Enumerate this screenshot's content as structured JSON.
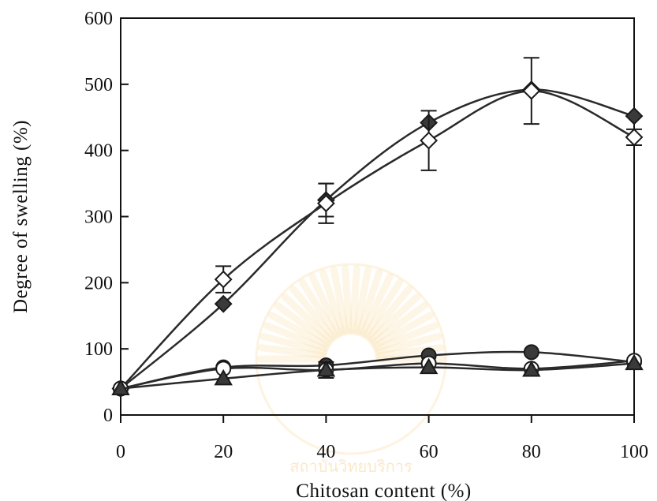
{
  "chart_data": {
    "type": "line",
    "title": "",
    "xlabel": "Chitosan content (%)",
    "ylabel": "Degree of swelling (%)",
    "xlim": [
      0,
      100
    ],
    "ylim": [
      0,
      600
    ],
    "xticks": [
      0,
      20,
      40,
      60,
      80,
      100
    ],
    "yticks": [
      0,
      100,
      200,
      300,
      400,
      500,
      600
    ],
    "x": [
      0,
      20,
      40,
      60,
      80,
      100
    ],
    "grid": false,
    "legend": "none",
    "series": [
      {
        "marker": "diamond-filled",
        "values": [
          40,
          168,
          325,
          442,
          492,
          452
        ],
        "errors": [
          0,
          0,
          25,
          0,
          0,
          0
        ]
      },
      {
        "marker": "diamond-open",
        "values": [
          40,
          205,
          320,
          415,
          490,
          420
        ],
        "errors": [
          0,
          20,
          30,
          45,
          50,
          12
        ]
      },
      {
        "marker": "circle-filled",
        "values": [
          40,
          72,
          75,
          90,
          95,
          80
        ],
        "errors": [
          0,
          0,
          0,
          0,
          0,
          0
        ]
      },
      {
        "marker": "circle-open",
        "values": [
          40,
          70,
          68,
          78,
          70,
          82
        ],
        "errors": [
          0,
          0,
          12,
          0,
          0,
          0
        ]
      },
      {
        "marker": "triangle-filled",
        "values": [
          40,
          55,
          68,
          72,
          68,
          78
        ],
        "errors": [
          0,
          0,
          0,
          0,
          0,
          0
        ]
      }
    ],
    "colors": {
      "line": "#2a2a2a",
      "marker_fill": "#3a3a3a",
      "marker_open": "#ffffff"
    }
  },
  "watermark": {
    "text": "สถาบันวิทยบริการ"
  }
}
